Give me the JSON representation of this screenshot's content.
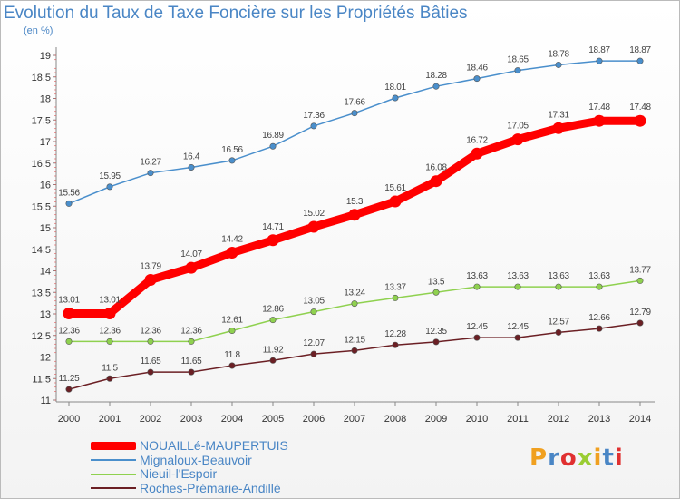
{
  "header": {
    "title": "Evolution du Taux de Taxe Foncière sur les Propriétés Bâties",
    "unit": "(en %)"
  },
  "logo": {
    "text": "Proxiti",
    "colors": [
      "#f0a020",
      "#4a86c5",
      "#e03030",
      "#9acd32"
    ]
  },
  "chart_data": {
    "type": "line",
    "title": "Evolution du Taux de Taxe Foncière sur les Propriétés Bâties",
    "ylabel": "(en %)",
    "xlabel": "",
    "x": [
      "2000",
      "2001",
      "2002",
      "2003",
      "2004",
      "2005",
      "2006",
      "2007",
      "2008",
      "2009",
      "2010",
      "2011",
      "2012",
      "2013",
      "2014"
    ],
    "ylim": [
      11,
      19
    ],
    "yticks": [
      "11",
      "11.5",
      "12",
      "12.5",
      "13",
      "13.5",
      "14",
      "14.5",
      "15",
      "15.5",
      "16",
      "16.5",
      "17",
      "17.5",
      "18",
      "18.5",
      "19"
    ],
    "grid": false,
    "legend_position": "bottom-left",
    "series": [
      {
        "name": "NOUAILLé-MAUPERTUIS",
        "color": "#ff0000",
        "emphasis": true,
        "values": [
          13.01,
          13.01,
          13.79,
          14.07,
          14.42,
          14.71,
          15.02,
          15.3,
          15.61,
          16.08,
          16.72,
          17.05,
          17.31,
          17.48,
          17.48
        ],
        "labels": [
          "13.01",
          "13.01",
          "13.79",
          "14.07",
          "14.42",
          "14.71",
          "15.02",
          "15.3",
          "15.61",
          "16.08",
          "16.72",
          "17.05",
          "17.31",
          "17.48",
          "17.48"
        ]
      },
      {
        "name": "Mignaloux-Beauvoir",
        "color": "#4a8fcc",
        "values": [
          15.56,
          15.95,
          16.27,
          16.4,
          16.56,
          16.89,
          17.36,
          17.66,
          18.01,
          18.28,
          18.46,
          18.65,
          18.78,
          18.87,
          18.87
        ],
        "labels": [
          "15.56",
          "15.95",
          "16.27",
          "16.4",
          "16.56",
          "16.89",
          "17.36",
          "17.66",
          "18.01",
          "18.28",
          "18.46",
          "18.65",
          "18.78",
          "18.87",
          "18.87"
        ]
      },
      {
        "name": "Nieuil-l'Espoir",
        "color": "#8fd14f",
        "values": [
          12.36,
          12.36,
          12.36,
          12.36,
          12.61,
          12.86,
          13.05,
          13.24,
          13.37,
          13.5,
          13.63,
          13.63,
          13.63,
          13.63,
          13.77
        ],
        "labels": [
          "12.36",
          "12.36",
          "12.36",
          "12.36",
          "12.61",
          "12.86",
          "13.05",
          "13.24",
          "13.37",
          "13.5",
          "13.63",
          "13.63",
          "13.63",
          "13.63",
          "13.77"
        ]
      },
      {
        "name": "Roches-Prémarie-Andillé",
        "color": "#6b1f24",
        "values": [
          11.25,
          11.5,
          11.65,
          11.65,
          11.8,
          11.92,
          12.07,
          12.15,
          12.28,
          12.35,
          12.45,
          12.45,
          12.57,
          12.66,
          12.79
        ],
        "labels": [
          "11.25",
          "11.5",
          "11.65",
          "11.65",
          "11.8",
          "11.92",
          "12.07",
          "12.15",
          "12.28",
          "12.35",
          "12.45",
          "12.45",
          "12.57",
          "12.66",
          "12.79"
        ]
      }
    ]
  }
}
